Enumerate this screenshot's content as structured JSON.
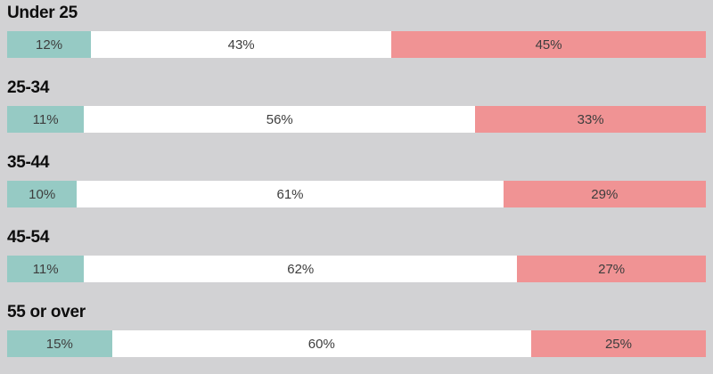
{
  "colors": {
    "page-bg": "#d2d2d4",
    "teal": "#96cac4",
    "white-seg": "#ffffff",
    "pink": "#f09394",
    "label-color": "#0d0d0d",
    "value-color": "#3d3d3d"
  },
  "chart_data": {
    "type": "bar",
    "orientation": "horizontal-stacked",
    "title": "",
    "legend": "none",
    "grid": false,
    "xlim": [
      0,
      100
    ],
    "value_suffix": "%",
    "categories": [
      "Under 25",
      "25-34",
      "35-44",
      "45-54",
      "55 or over"
    ],
    "series": [
      {
        "name": "teal-segment",
        "color": "#96cac4",
        "values": [
          12,
          11,
          10,
          11,
          15
        ]
      },
      {
        "name": "white-segment",
        "color": "#ffffff",
        "values": [
          43,
          56,
          61,
          62,
          60
        ]
      },
      {
        "name": "pink-segment",
        "color": "#f09394",
        "values": [
          45,
          33,
          29,
          27,
          25
        ]
      }
    ]
  },
  "rows": [
    {
      "label": "Under 25",
      "segments": [
        {
          "value": 12,
          "text": "12%"
        },
        {
          "value": 43,
          "text": "43%"
        },
        {
          "value": 45,
          "text": "45%"
        }
      ]
    },
    {
      "label": "25-34",
      "segments": [
        {
          "value": 11,
          "text": "11%"
        },
        {
          "value": 56,
          "text": "56%"
        },
        {
          "value": 33,
          "text": "33%"
        }
      ]
    },
    {
      "label": "35-44",
      "segments": [
        {
          "value": 10,
          "text": "10%"
        },
        {
          "value": 61,
          "text": "61%"
        },
        {
          "value": 29,
          "text": "29%"
        }
      ]
    },
    {
      "label": "45-54",
      "segments": [
        {
          "value": 11,
          "text": "11%"
        },
        {
          "value": 62,
          "text": "62%"
        },
        {
          "value": 27,
          "text": "27%"
        }
      ]
    },
    {
      "label": "55 or over",
      "segments": [
        {
          "value": 15,
          "text": "15%"
        },
        {
          "value": 60,
          "text": "60%"
        },
        {
          "value": 25,
          "text": "25%"
        }
      ]
    }
  ]
}
